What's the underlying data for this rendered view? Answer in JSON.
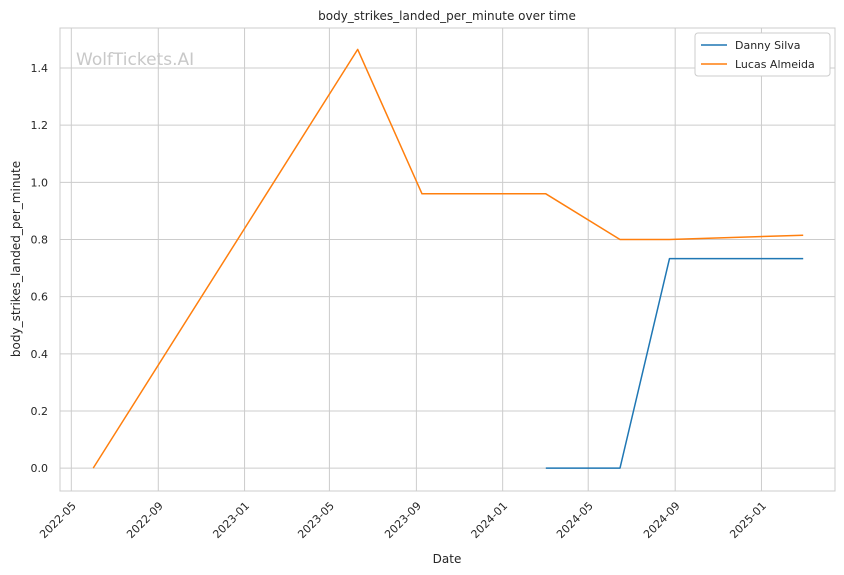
{
  "chart_data": {
    "type": "line",
    "title": "body_strikes_landed_per_minute over time",
    "xlabel": "Date",
    "ylabel": "body_strikes_landed_per_minute",
    "watermark": "WolfTickets.AI",
    "x_ticks": [
      "2022-05",
      "2022-09",
      "2023-01",
      "2023-05",
      "2023-09",
      "2024-01",
      "2024-05",
      "2024-09",
      "2025-01"
    ],
    "y_ticks": [
      "0.0",
      "0.2",
      "0.4",
      "0.6",
      "0.8",
      "1.0",
      "1.2",
      "1.4"
    ],
    "xlim": [
      "2022-04-15",
      "2025-04-15"
    ],
    "ylim": [
      -0.08,
      1.54
    ],
    "grid": true,
    "legend_position": "top-right",
    "series": [
      {
        "name": "Danny Silva",
        "color": "#1f77b4",
        "points": [
          {
            "x": "2024-03-02",
            "y": 0.0
          },
          {
            "x": "2024-06-15",
            "y": 0.0
          },
          {
            "x": "2024-08-24",
            "y": 0.733
          },
          {
            "x": "2025-03-01",
            "y": 0.733
          }
        ]
      },
      {
        "name": "Lucas Almeida",
        "color": "#ff7f0e",
        "points": [
          {
            "x": "2022-06-01",
            "y": 0.0
          },
          {
            "x": "2023-06-10",
            "y": 1.465
          },
          {
            "x": "2023-09-09",
            "y": 0.96
          },
          {
            "x": "2024-03-02",
            "y": 0.96
          },
          {
            "x": "2024-06-15",
            "y": 0.8
          },
          {
            "x": "2024-08-24",
            "y": 0.8
          },
          {
            "x": "2025-03-01",
            "y": 0.815
          }
        ]
      }
    ]
  }
}
